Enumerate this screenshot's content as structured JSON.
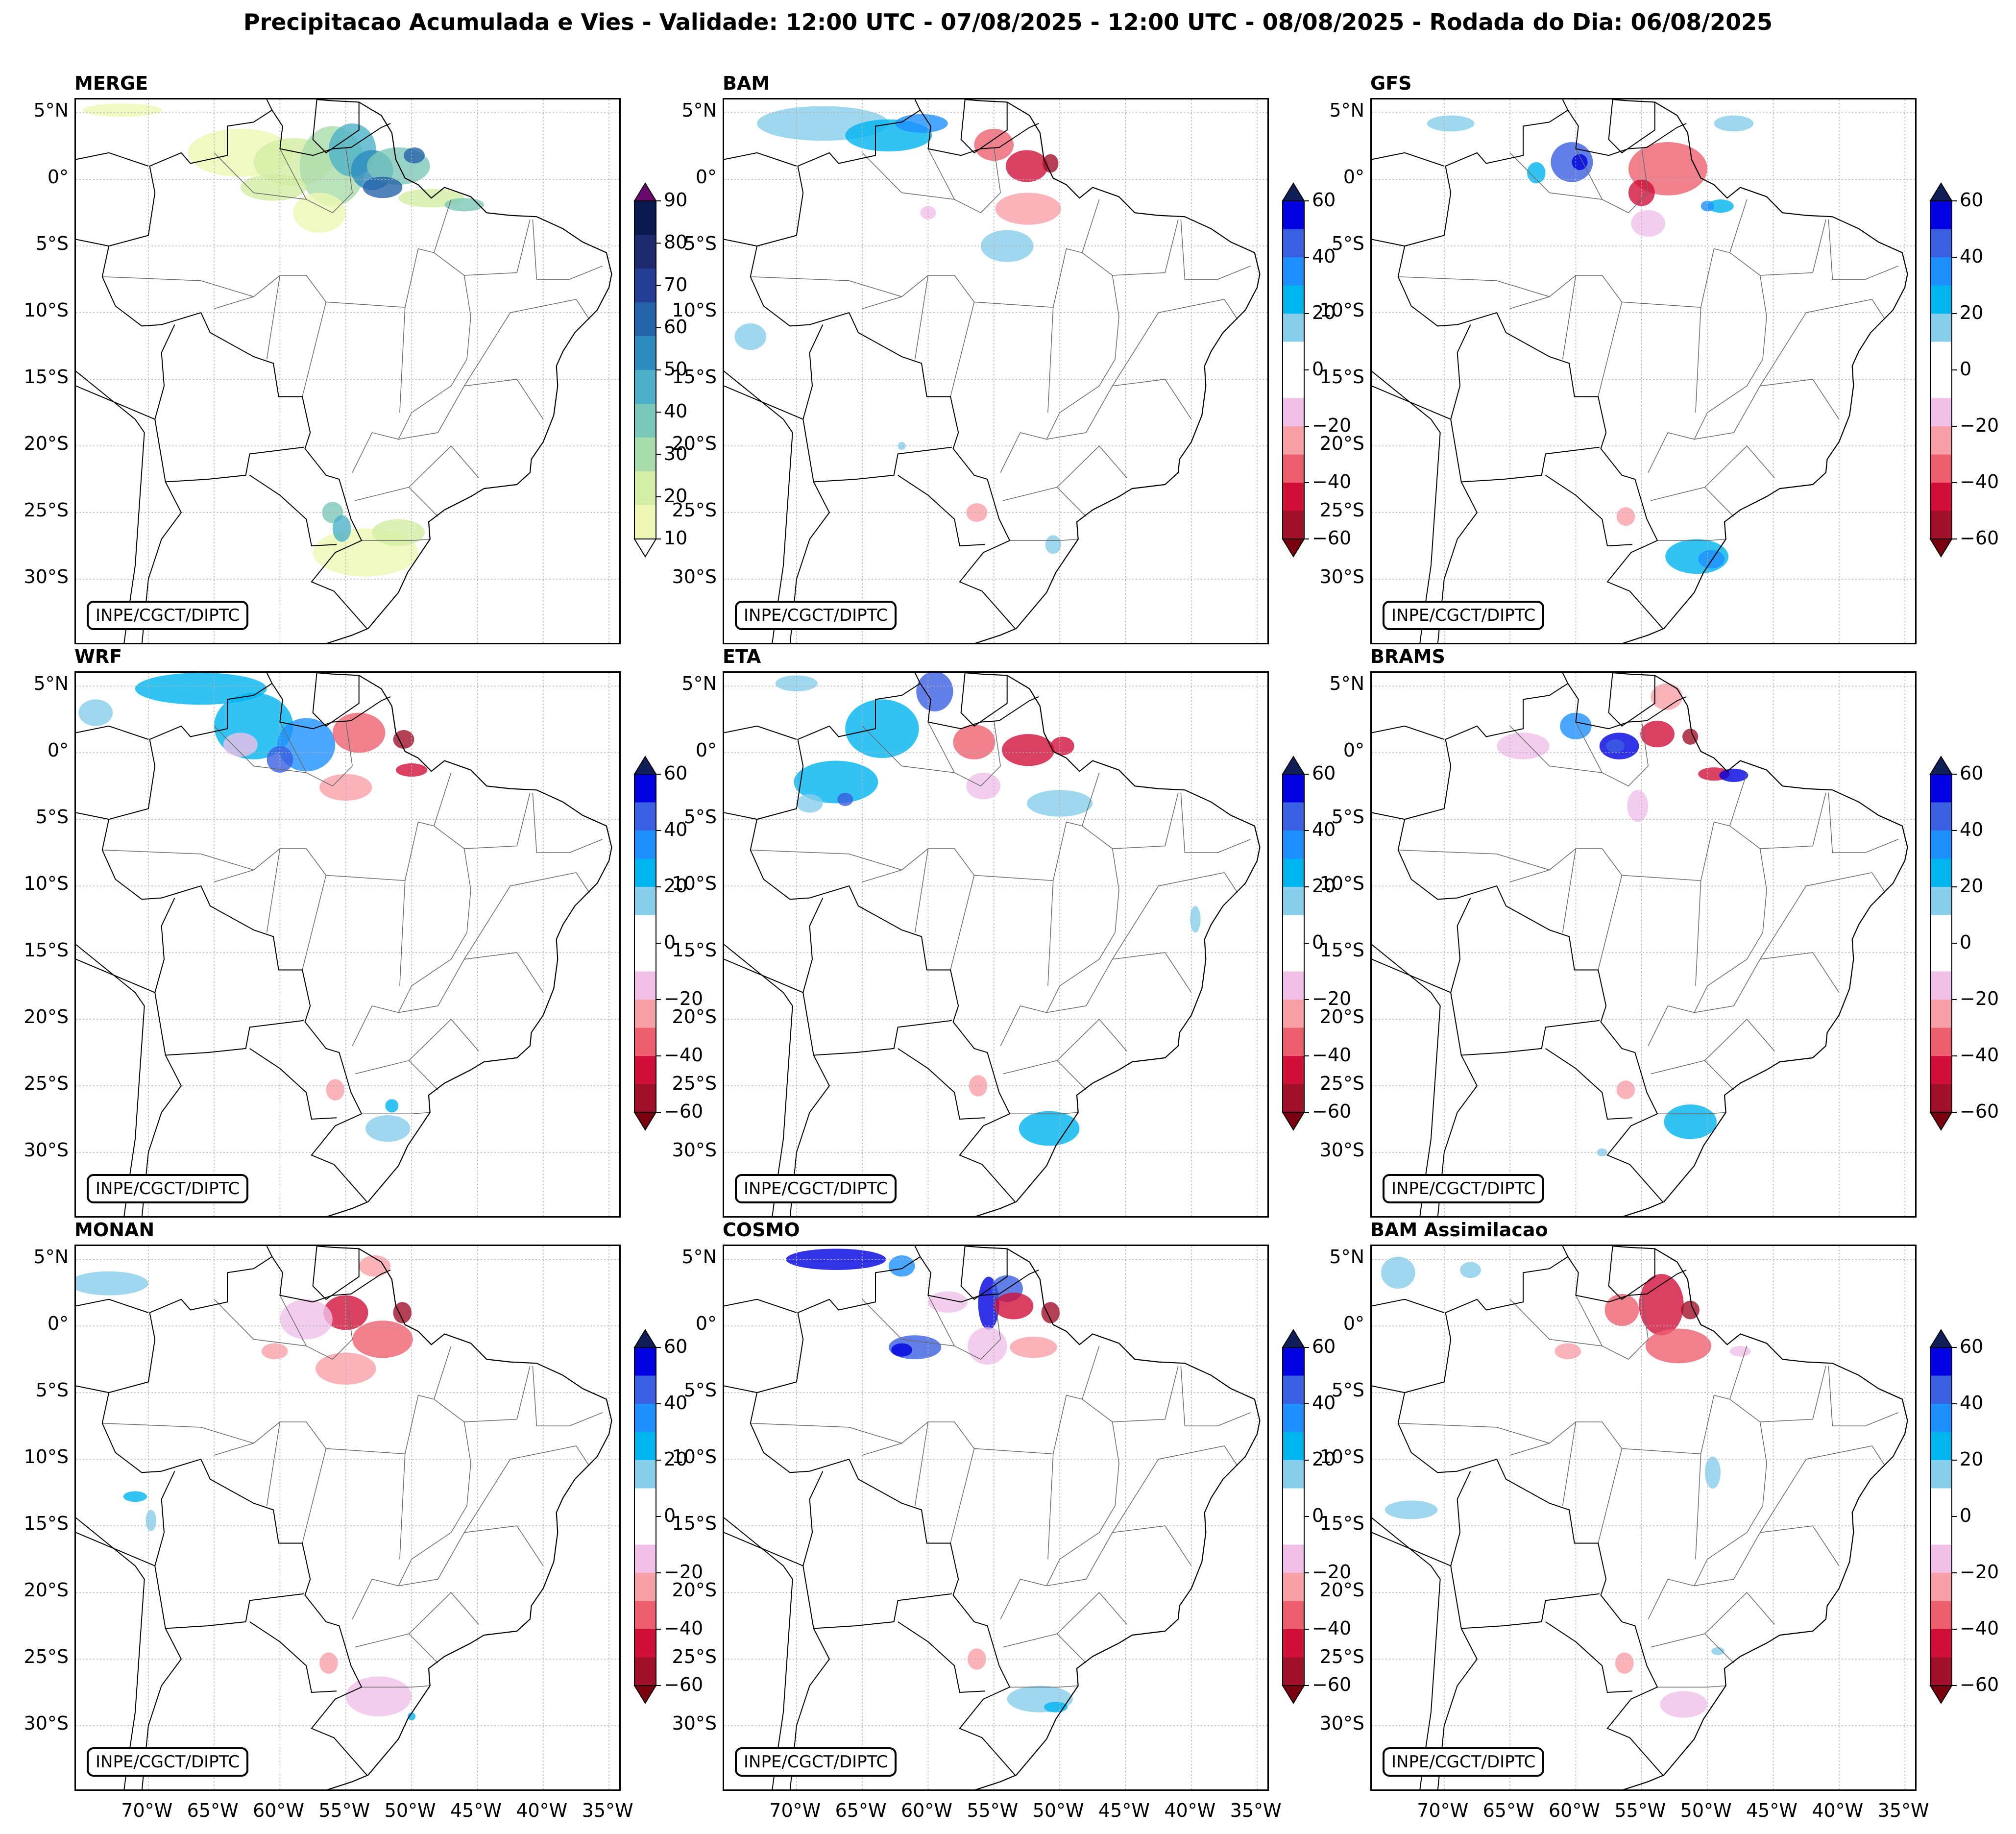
{
  "title": "Precipitacao Acumulada e Vies - Validade: 12:00 UTC - 07/08/2025 - 12:00 UTC - 08/08/2025 - Rodada do Dia: 06/08/2025",
  "credit": "INPE/CGCT/DIPTC",
  "lat_labels": [
    "5°N",
    "0°",
    "5°S",
    "10°S",
    "15°S",
    "20°S",
    "25°S",
    "30°S"
  ],
  "lon_labels": [
    "70°W",
    "65°W",
    "60°W",
    "55°W",
    "50°W",
    "45°W",
    "40°W",
    "35°W"
  ],
  "panels": [
    {
      "id": "merge",
      "title": "MERGE",
      "scale": "precip"
    },
    {
      "id": "bam",
      "title": "BAM",
      "scale": "bias"
    },
    {
      "id": "gfs",
      "title": "GFS",
      "scale": "bias"
    },
    {
      "id": "wrf",
      "title": "WRF",
      "scale": "bias"
    },
    {
      "id": "eta",
      "title": "ETA",
      "scale": "bias"
    },
    {
      "id": "brams",
      "title": "BRAMS",
      "scale": "bias"
    },
    {
      "id": "monan",
      "title": "MONAN",
      "scale": "bias"
    },
    {
      "id": "cosmo",
      "title": "COSMO",
      "scale": "bias"
    },
    {
      "id": "bam-assim",
      "title": "BAM Assimilacao",
      "scale": "bias"
    }
  ],
  "colorbars": {
    "precip": {
      "ticks": [
        "10",
        "20",
        "30",
        "40",
        "50",
        "60",
        "70",
        "80",
        "90"
      ],
      "colors": [
        "#eef8b4",
        "#d3eea4",
        "#a9dcaa",
        "#7cc8b8",
        "#4cb1c8",
        "#2c8bbf",
        "#2563a8",
        "#263e94",
        "#1f2a6e",
        "#0a1a4e"
      ],
      "under_color": "#ffffff",
      "over_color": "#6a0a6e"
    },
    "bias": {
      "ticks": [
        "60",
        "40",
        "20",
        "0",
        "−20",
        "−40",
        "−60"
      ],
      "colors": [
        "#0000e0",
        "#3a5fe0",
        "#1e90ff",
        "#00b4f0",
        "#87ceea",
        "#ffffff",
        "#ffffff",
        "#f0c0e8",
        "#f7a0a8",
        "#ee6070",
        "#d0103a",
        "#a0102a"
      ],
      "over_color": "#101e5a",
      "under_color": "#7a0010"
    }
  }
}
